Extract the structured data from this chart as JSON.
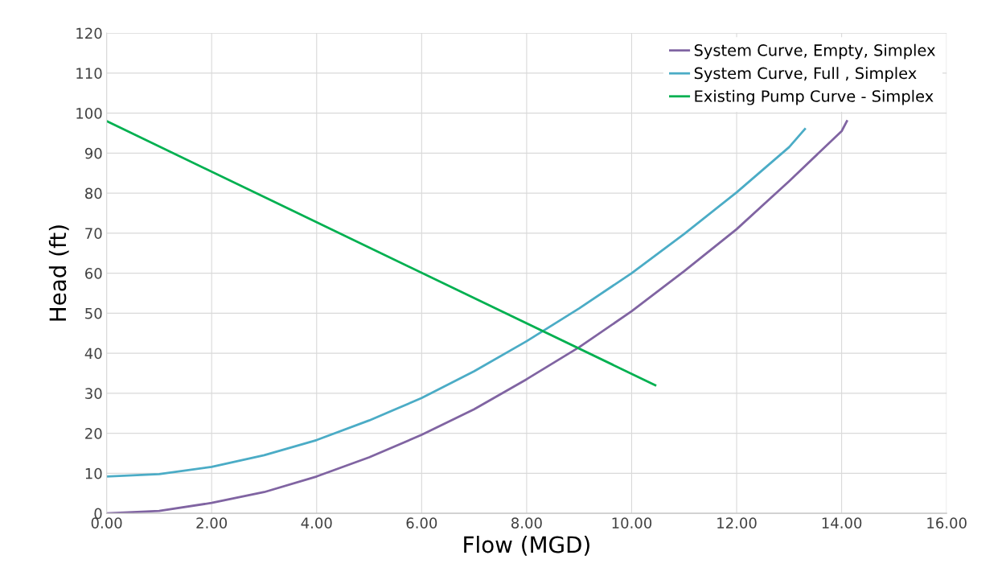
{
  "chart_data": {
    "type": "line",
    "xlabel": "Flow (MGD)",
    "ylabel": "Head (ft)",
    "xlim": [
      0,
      16
    ],
    "ylim": [
      0,
      120
    ],
    "xticks": [
      {
        "value": 0,
        "label": "0.00"
      },
      {
        "value": 2,
        "label": "2.00"
      },
      {
        "value": 4,
        "label": "4.00"
      },
      {
        "value": 6,
        "label": "6.00"
      },
      {
        "value": 8,
        "label": "8.00"
      },
      {
        "value": 10,
        "label": "10.00"
      },
      {
        "value": 12,
        "label": "12.00"
      },
      {
        "value": 14,
        "label": "14.00"
      },
      {
        "value": 16,
        "label": "16.00"
      }
    ],
    "yticks": [
      0,
      10,
      20,
      30,
      40,
      50,
      60,
      70,
      80,
      90,
      100,
      110,
      120
    ],
    "grid": true,
    "legend": "top right",
    "marker": "none",
    "line_style": "solid",
    "series": [
      {
        "name": "System Curve, Empty, Simplex",
        "color": "#8064a2",
        "x": [
          0,
          1,
          2,
          3,
          4,
          5,
          6,
          7,
          8,
          9,
          10,
          11,
          12,
          13,
          14,
          14.1
        ],
        "values": [
          0,
          0.6,
          2.6,
          5.3,
          9.2,
          14,
          19.6,
          26,
          33.5,
          41.5,
          50.5,
          60.5,
          71,
          83,
          95.5,
          98
        ]
      },
      {
        "name": "System Curve, Full , Simplex",
        "color": "#4bacc6",
        "x": [
          0,
          1,
          2,
          3,
          4,
          5,
          6,
          7,
          8,
          9,
          10,
          11,
          12,
          13,
          13.3
        ],
        "values": [
          9.2,
          9.8,
          11.6,
          14.5,
          18.3,
          23.2,
          28.8,
          35.5,
          43,
          51.2,
          60,
          69.8,
          80.2,
          91.5,
          96
        ]
      },
      {
        "name": "Existing Pump Curve - Simplex",
        "color": "#00b050",
        "x": [
          0,
          10.45
        ],
        "values": [
          98,
          32
        ]
      }
    ]
  }
}
